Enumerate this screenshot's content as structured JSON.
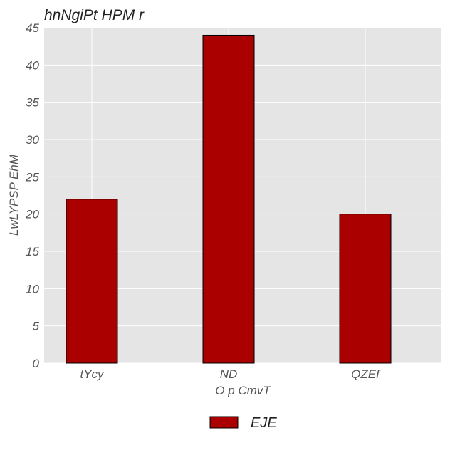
{
  "chart_data": {
    "type": "bar",
    "title": "hnNgiPt HPM r",
    "xlabel": "O p CmvT",
    "ylabel": "LwLYPSP EhM",
    "categories": [
      "tYcy",
      "ND",
      "QZEf"
    ],
    "series": [
      {
        "name": "EJE",
        "values": [
          22,
          44,
          20
        ],
        "color": "#aa0000"
      }
    ],
    "ylim": [
      0,
      45
    ],
    "yticks": [
      0,
      5,
      10,
      15,
      20,
      25,
      30,
      35,
      40,
      45
    ],
    "grid": true,
    "legend_position": "bottom-center",
    "plot_background": "#e5e5e5",
    "grid_color": "#ffffff",
    "bar_edge_color": "#000000"
  }
}
